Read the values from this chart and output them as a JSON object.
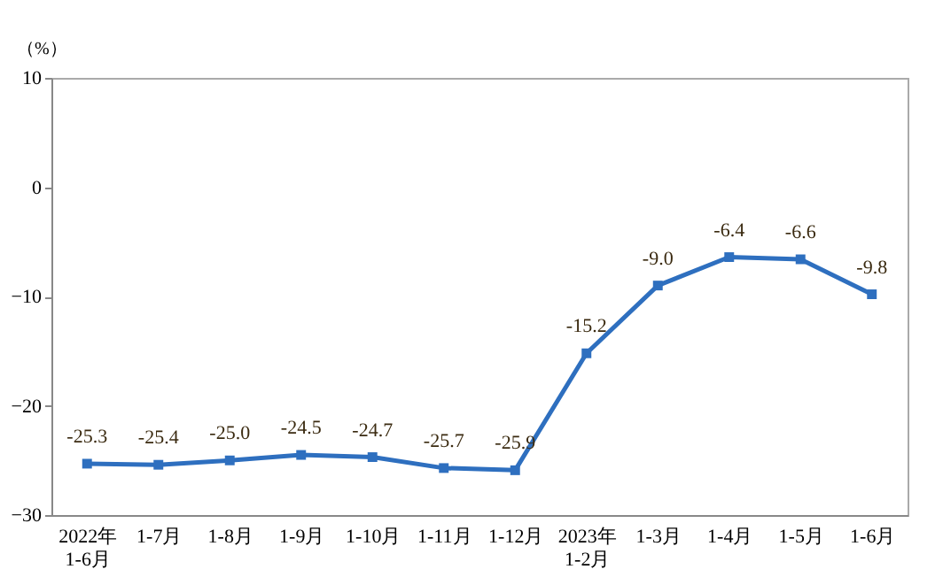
{
  "chart_data": {
    "type": "line",
    "ylabel": "（%）",
    "categories": [
      "2022年\n1-6月",
      "1-7月",
      "1-8月",
      "1-9月",
      "1-10月",
      "1-11月",
      "1-12月",
      "2023年\n1-2月",
      "1-3月",
      "1-4月",
      "1-5月",
      "1-6月"
    ],
    "series": [
      {
        "color": "#2e6fbf",
        "values": [
          -25.3,
          -25.4,
          -25.0,
          -24.5,
          -24.7,
          -25.7,
          -25.9,
          -15.2,
          -9.0,
          -6.4,
          -6.6,
          -9.8
        ],
        "value_labels": [
          "-25.3",
          "-25.4",
          "-25.0",
          "-24.5",
          "-24.7",
          "-25.7",
          "-25.9",
          "-15.2",
          "-9.0",
          "-6.4",
          "-6.6",
          "-9.8"
        ]
      }
    ],
    "ylim": [
      -30,
      10
    ],
    "yticks": [
      -30,
      -20,
      -10,
      0,
      10
    ],
    "grid": false,
    "marker": "square",
    "line_style": "solid"
  }
}
